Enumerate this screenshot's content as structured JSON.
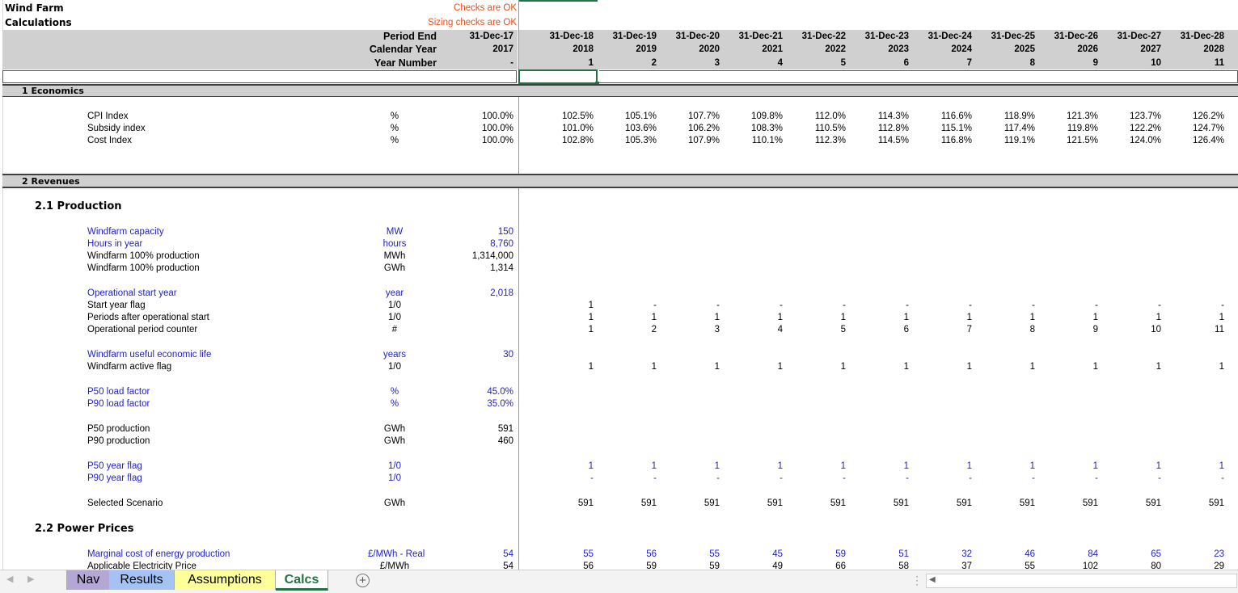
{
  "sheet": {
    "title": "Wind Farm",
    "subtitle": "Calculations"
  },
  "checks": {
    "main": "Checks are OK",
    "sizing": "Sizing checks are OK"
  },
  "header": {
    "labels": [
      "Period End",
      "Calendar Year",
      "Year Number"
    ],
    "base": {
      "date": "31-Dec-17",
      "year": "2017",
      "num": "-"
    },
    "columns": [
      {
        "date": "31-Dec-18",
        "year": "2018",
        "num": "1"
      },
      {
        "date": "31-Dec-19",
        "year": "2019",
        "num": "2"
      },
      {
        "date": "31-Dec-20",
        "year": "2020",
        "num": "3"
      },
      {
        "date": "31-Dec-21",
        "year": "2021",
        "num": "4"
      },
      {
        "date": "31-Dec-22",
        "year": "2022",
        "num": "5"
      },
      {
        "date": "31-Dec-23",
        "year": "2023",
        "num": "6"
      },
      {
        "date": "31-Dec-24",
        "year": "2024",
        "num": "7"
      },
      {
        "date": "31-Dec-25",
        "year": "2025",
        "num": "8"
      },
      {
        "date": "31-Dec-26",
        "year": "2026",
        "num": "9"
      },
      {
        "date": "31-Dec-27",
        "year": "2027",
        "num": "10"
      },
      {
        "date": "31-Dec-28",
        "year": "2028",
        "num": "11"
      }
    ]
  },
  "sections": {
    "economics": "1 Economics",
    "revenues": "2 Revenues",
    "production": "2.1  Production",
    "power_prices": "2.2  Power Prices"
  },
  "rows": [
    {
      "label": "CPI Index",
      "unit": "%",
      "base": "100.0%",
      "values": [
        "102.5%",
        "105.1%",
        "107.7%",
        "109.8%",
        "112.0%",
        "114.3%",
        "116.6%",
        "118.9%",
        "121.3%",
        "123.7%",
        "126.2%"
      ]
    },
    {
      "label": "Subsidy index",
      "unit": "%",
      "base": "100.0%",
      "values": [
        "101.0%",
        "103.6%",
        "106.2%",
        "108.3%",
        "110.5%",
        "112.8%",
        "115.1%",
        "117.4%",
        "119.8%",
        "122.2%",
        "124.7%"
      ]
    },
    {
      "label": "Cost Index",
      "unit": "%",
      "base": "100.0%",
      "values": [
        "102.8%",
        "105.3%",
        "107.9%",
        "110.1%",
        "112.3%",
        "114.5%",
        "116.8%",
        "119.1%",
        "121.5%",
        "124.0%",
        "126.4%"
      ]
    },
    {
      "label": "Windfarm capacity",
      "unit": "MW",
      "base": "150",
      "blue": true,
      "values": []
    },
    {
      "label": "Hours in year",
      "unit": "hours",
      "base": "8,760",
      "blue": true,
      "values": []
    },
    {
      "label": "Windfarm 100% production",
      "unit": "MWh",
      "base": "1,314,000",
      "values": []
    },
    {
      "label": "Windfarm 100% production",
      "unit": "GWh",
      "base": "1,314",
      "values": []
    },
    {
      "label": "Operational start year",
      "unit": "year",
      "base": "2,018",
      "blue": true,
      "values": []
    },
    {
      "label": "Start year flag",
      "unit": "1/0",
      "base": "",
      "values": [
        "1",
        "-",
        "-",
        "-",
        "-",
        "-",
        "-",
        "-",
        "-",
        "-",
        "-"
      ]
    },
    {
      "label": "Periods after operational start",
      "unit": "1/0",
      "base": "",
      "values": [
        "1",
        "1",
        "1",
        "1",
        "1",
        "1",
        "1",
        "1",
        "1",
        "1",
        "1"
      ]
    },
    {
      "label": "Operational period counter",
      "unit": "#",
      "base": "",
      "values": [
        "1",
        "2",
        "3",
        "4",
        "5",
        "6",
        "7",
        "8",
        "9",
        "10",
        "11"
      ]
    },
    {
      "label": "Windfarm useful economic life",
      "unit": "years",
      "base": "30",
      "blue": true,
      "values": []
    },
    {
      "label": "Windfarm active flag",
      "unit": "1/0",
      "base": "",
      "values": [
        "1",
        "1",
        "1",
        "1",
        "1",
        "1",
        "1",
        "1",
        "1",
        "1",
        "1"
      ]
    },
    {
      "label": "P50 load factor",
      "unit": "%",
      "base": "45.0%",
      "blue": true,
      "values": []
    },
    {
      "label": "P90 load factor",
      "unit": "%",
      "base": "35.0%",
      "blue": true,
      "values": []
    },
    {
      "label": "P50 production",
      "unit": "GWh",
      "base": "591",
      "values": []
    },
    {
      "label": "P90 production",
      "unit": "GWh",
      "base": "460",
      "values": []
    },
    {
      "label": "P50 year flag",
      "unit": "1/0",
      "base": "",
      "blue": true,
      "values": [
        "1",
        "1",
        "1",
        "1",
        "1",
        "1",
        "1",
        "1",
        "1",
        "1",
        "1"
      ]
    },
    {
      "label": "P90 year flag",
      "unit": "1/0",
      "base": "",
      "blue": true,
      "values": [
        "-",
        "-",
        "-",
        "-",
        "-",
        "-",
        "-",
        "-",
        "-",
        "-",
        "-"
      ]
    },
    {
      "label": "Selected Scenario",
      "unit": "GWh",
      "base": "",
      "values": [
        "591",
        "591",
        "591",
        "591",
        "591",
        "591",
        "591",
        "591",
        "591",
        "591",
        "591"
      ]
    },
    {
      "label": "Marginal cost of energy production",
      "unit": "£/MWh - Real",
      "base": "54",
      "blue": true,
      "values": [
        "55",
        "56",
        "55",
        "45",
        "59",
        "51",
        "32",
        "46",
        "84",
        "65",
        "23"
      ]
    },
    {
      "label": "Applicable Electricity Price",
      "unit": "£/MWh",
      "base": "54",
      "values": [
        "56",
        "59",
        "59",
        "49",
        "66",
        "58",
        "37",
        "55",
        "102",
        "80",
        "29"
      ]
    }
  ],
  "tabs": [
    "Nav",
    "Results",
    "Assumptions",
    "Calcs"
  ],
  "colors": {
    "nav": "#b4a7d6",
    "results": "#a4c2f4",
    "assumptions": "#ffff99",
    "calcs_text": "#217346",
    "header_band": "#d0d0d0",
    "input_blue": "#1f1fc8",
    "check_red": "#e0501f"
  },
  "icons": {
    "add_sheet": "plus-circle-icon",
    "prev": "triangle-left-icon",
    "next": "triangle-right-icon"
  }
}
